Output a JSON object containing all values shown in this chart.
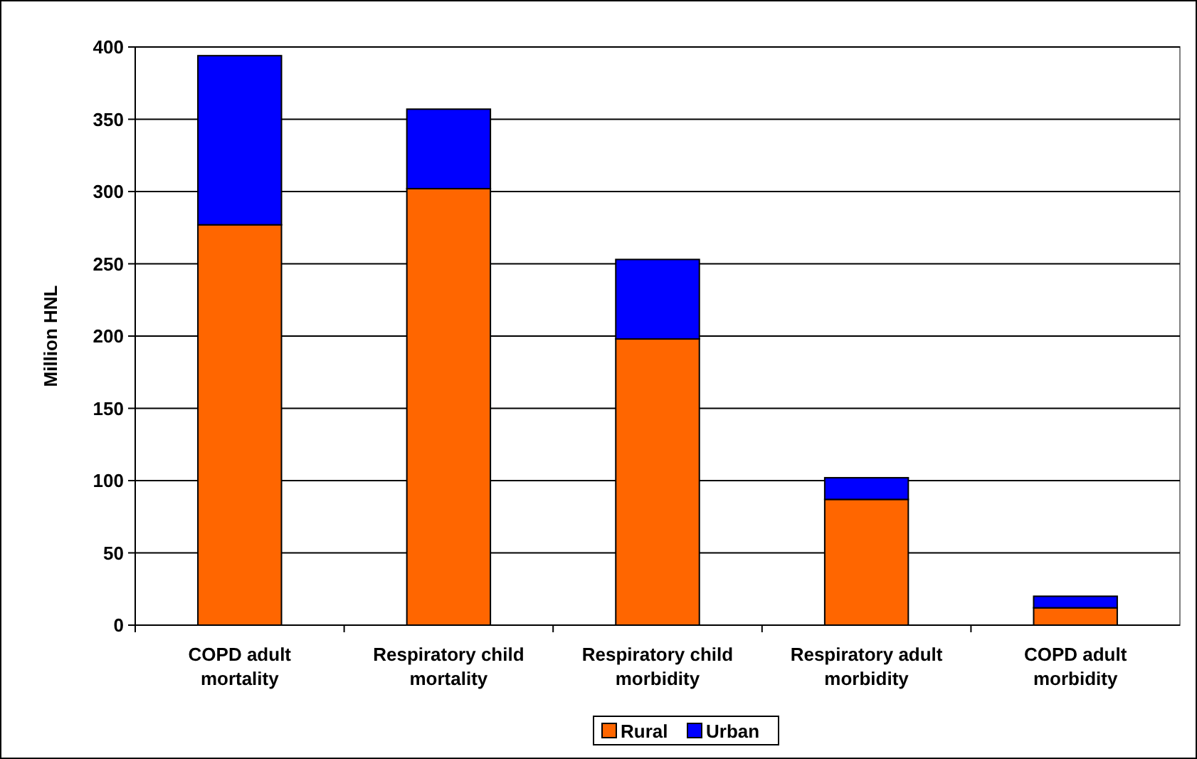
{
  "chart_data": {
    "type": "bar",
    "stacked": true,
    "ylabel": "Million HNL",
    "categories": [
      "COPD adult mortality",
      "Respiratory child mortality",
      "Respiratory child morbidity",
      "Respiratory adult morbidity",
      "COPD adult morbidity"
    ],
    "series": [
      {
        "name": "Rural",
        "color": "#ff6600",
        "values": [
          277,
          302,
          198,
          87,
          12
        ]
      },
      {
        "name": "Urban",
        "color": "#0000ff",
        "values": [
          117,
          55,
          55,
          15,
          8
        ]
      }
    ],
    "ylim": [
      0,
      400
    ],
    "yticks": [
      0,
      50,
      100,
      150,
      200,
      250,
      300,
      350,
      400
    ],
    "grid": "y",
    "legend": "bottom"
  }
}
